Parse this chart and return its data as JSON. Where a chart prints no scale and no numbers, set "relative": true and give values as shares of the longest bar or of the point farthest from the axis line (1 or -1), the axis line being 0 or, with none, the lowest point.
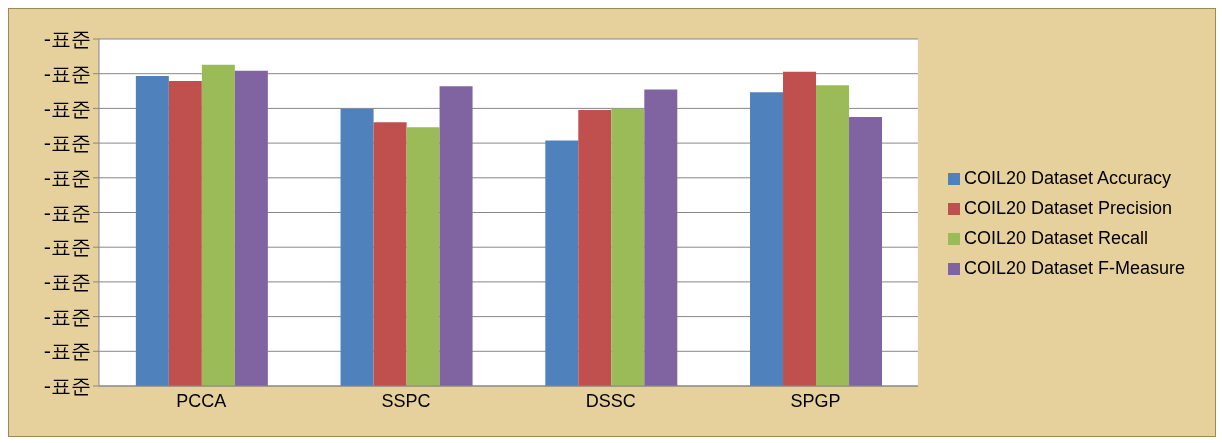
{
  "chart_data": {
    "type": "bar",
    "relative": true,
    "categories": [
      "PCCA",
      "SSPC",
      "DSSC",
      "SPGP"
    ],
    "series": [
      {
        "name": "COIL20 Dataset Accuracy",
        "color": "#4f81bd",
        "values": [
          0.965,
          0.863,
          0.764,
          0.914
        ]
      },
      {
        "name": "COIL20 Dataset Precision",
        "color": "#c0504d",
        "values": [
          0.949,
          0.821,
          0.859,
          0.978
        ]
      },
      {
        "name": "COIL20 Dataset Recall",
        "color": "#9bbb59",
        "values": [
          1,
          0.805,
          0.863,
          0.936
        ]
      },
      {
        "name": "COIL20 Dataset F-Measure",
        "color": "#8064a2",
        "values": [
          0.981,
          0.933,
          0.923,
          0.837
        ]
      }
    ],
    "annotations": [
      "-표준",
      "-표준",
      "-표준",
      "-표준",
      "-표준",
      "-표준",
      "-표준",
      "-표준",
      "-표준",
      "-표준",
      "-표준"
    ],
    "grid": "y",
    "legend": "right"
  }
}
